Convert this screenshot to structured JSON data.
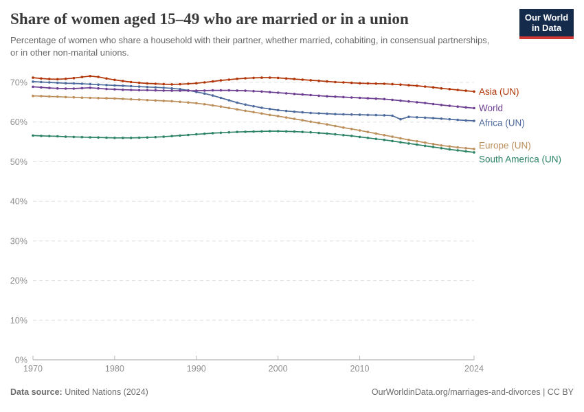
{
  "header": {
    "title": "Share of women aged 15–49 who are married or in a union",
    "subtitle": "Percentage of women who share a household with their partner, whether married, cohabiting, in consensual partnerships, or in other non-marital unions.",
    "logo": {
      "line1": "Our World",
      "line2": "in Data",
      "bg_color": "#142b4c",
      "bar_color": "#cd3731"
    }
  },
  "chart_data": {
    "type": "line",
    "title": "Share of women aged 15–49 who are married or in a union",
    "subtitle": "Percentage of women who share a household with their partner, whether married, cohabiting, in consensual partnerships, or in other non-marital unions.",
    "xlabel": "",
    "ylabel": "",
    "xlim": [
      1970,
      2024
    ],
    "ylim": [
      0,
      75
    ],
    "grid": true,
    "gridline_style": "dashed",
    "legend_position": "right-of-line-ends",
    "x": [
      1970,
      1971,
      1972,
      1973,
      1974,
      1975,
      1976,
      1977,
      1978,
      1979,
      1980,
      1981,
      1982,
      1983,
      1984,
      1985,
      1986,
      1987,
      1988,
      1989,
      1990,
      1991,
      1992,
      1993,
      1994,
      1995,
      1996,
      1997,
      1998,
      1999,
      2000,
      2001,
      2002,
      2003,
      2004,
      2005,
      2006,
      2007,
      2008,
      2009,
      2010,
      2011,
      2012,
      2013,
      2014,
      2015,
      2016,
      2017,
      2018,
      2019,
      2020,
      2021,
      2022,
      2023,
      2024
    ],
    "xticks": [
      1970,
      1980,
      1990,
      2000,
      2010,
      2024
    ],
    "yticks": {
      "values": [
        0,
        10,
        20,
        30,
        40,
        50,
        60,
        70
      ],
      "labels": [
        "0%",
        "10%",
        "20%",
        "30%",
        "40%",
        "50%",
        "60%",
        "70%"
      ]
    },
    "series": [
      {
        "name": "Asia (UN)",
        "color": "#B13507",
        "legend_dy": 0,
        "values": [
          71.2,
          71.0,
          70.85,
          70.8,
          70.9,
          71.1,
          71.35,
          71.6,
          71.4,
          71.0,
          70.65,
          70.35,
          70.1,
          69.9,
          69.75,
          69.65,
          69.55,
          69.5,
          69.55,
          69.65,
          69.8,
          70.0,
          70.25,
          70.5,
          70.7,
          70.9,
          71.05,
          71.15,
          71.2,
          71.2,
          71.15,
          71.0,
          70.85,
          70.7,
          70.55,
          70.4,
          70.25,
          70.1,
          70.0,
          69.9,
          69.8,
          69.75,
          69.7,
          69.65,
          69.55,
          69.45,
          69.3,
          69.15,
          68.95,
          68.75,
          68.5,
          68.3,
          68.1,
          67.9,
          67.7
        ]
      },
      {
        "name": "World",
        "color": "#6D3E91",
        "legend_dy": 0,
        "values": [
          68.9,
          68.75,
          68.6,
          68.5,
          68.45,
          68.45,
          68.55,
          68.65,
          68.5,
          68.35,
          68.25,
          68.15,
          68.1,
          68.05,
          68.05,
          68.0,
          67.95,
          67.9,
          67.9,
          67.9,
          67.9,
          67.95,
          68.0,
          68.0,
          68.0,
          67.95,
          67.9,
          67.8,
          67.7,
          67.55,
          67.4,
          67.25,
          67.1,
          66.95,
          66.8,
          66.65,
          66.5,
          66.4,
          66.3,
          66.2,
          66.1,
          66.0,
          65.9,
          65.8,
          65.6,
          65.4,
          65.2,
          65.0,
          64.8,
          64.55,
          64.3,
          64.1,
          63.9,
          63.7,
          63.5
        ]
      },
      {
        "name": "Africa (UN)",
        "color": "#4C6A9C",
        "legend_dy": 3,
        "values": [
          70.2,
          70.1,
          70.0,
          69.9,
          69.8,
          69.75,
          69.65,
          69.55,
          69.45,
          69.35,
          69.25,
          69.15,
          69.05,
          68.95,
          68.85,
          68.75,
          68.65,
          68.5,
          68.3,
          68.0,
          67.6,
          67.2,
          66.7,
          66.1,
          65.5,
          64.9,
          64.4,
          64.0,
          63.6,
          63.3,
          63.0,
          62.8,
          62.6,
          62.45,
          62.3,
          62.2,
          62.1,
          62.0,
          61.95,
          61.9,
          61.85,
          61.8,
          61.75,
          61.7,
          61.6,
          60.7,
          61.3,
          61.2,
          61.1,
          61.0,
          60.85,
          60.7,
          60.55,
          60.4,
          60.3
        ]
      },
      {
        "name": "Europe (UN)",
        "color": "#BC8E5A",
        "legend_dy": -5,
        "values": [
          66.6,
          66.55,
          66.45,
          66.4,
          66.3,
          66.25,
          66.15,
          66.1,
          66.05,
          66.0,
          65.95,
          65.85,
          65.75,
          65.65,
          65.55,
          65.45,
          65.35,
          65.25,
          65.1,
          64.95,
          64.75,
          64.5,
          64.2,
          63.9,
          63.55,
          63.2,
          62.85,
          62.5,
          62.15,
          61.8,
          61.5,
          61.15,
          60.8,
          60.45,
          60.1,
          59.75,
          59.4,
          59.0,
          58.6,
          58.25,
          57.9,
          57.5,
          57.1,
          56.7,
          56.3,
          55.9,
          55.5,
          55.15,
          54.8,
          54.45,
          54.1,
          53.85,
          53.6,
          53.4,
          53.2
        ]
      },
      {
        "name": "South America (UN)",
        "color": "#2C8465",
        "legend_dy": 10,
        "values": [
          56.6,
          56.5,
          56.45,
          56.4,
          56.3,
          56.25,
          56.2,
          56.15,
          56.1,
          56.05,
          56.0,
          56.0,
          56.0,
          56.05,
          56.1,
          56.2,
          56.3,
          56.45,
          56.6,
          56.75,
          56.9,
          57.05,
          57.2,
          57.3,
          57.4,
          57.5,
          57.55,
          57.6,
          57.65,
          57.7,
          57.7,
          57.65,
          57.6,
          57.5,
          57.4,
          57.25,
          57.1,
          56.9,
          56.7,
          56.5,
          56.25,
          56.0,
          55.75,
          55.5,
          55.2,
          54.9,
          54.6,
          54.3,
          54.0,
          53.7,
          53.4,
          53.1,
          52.85,
          52.6,
          52.35
        ]
      }
    ]
  },
  "footer": {
    "data_source_label": "Data source:",
    "data_source_value": "United Nations (2024)",
    "attribution": "OurWorldinData.org/marriages-and-divorces | CC BY"
  }
}
